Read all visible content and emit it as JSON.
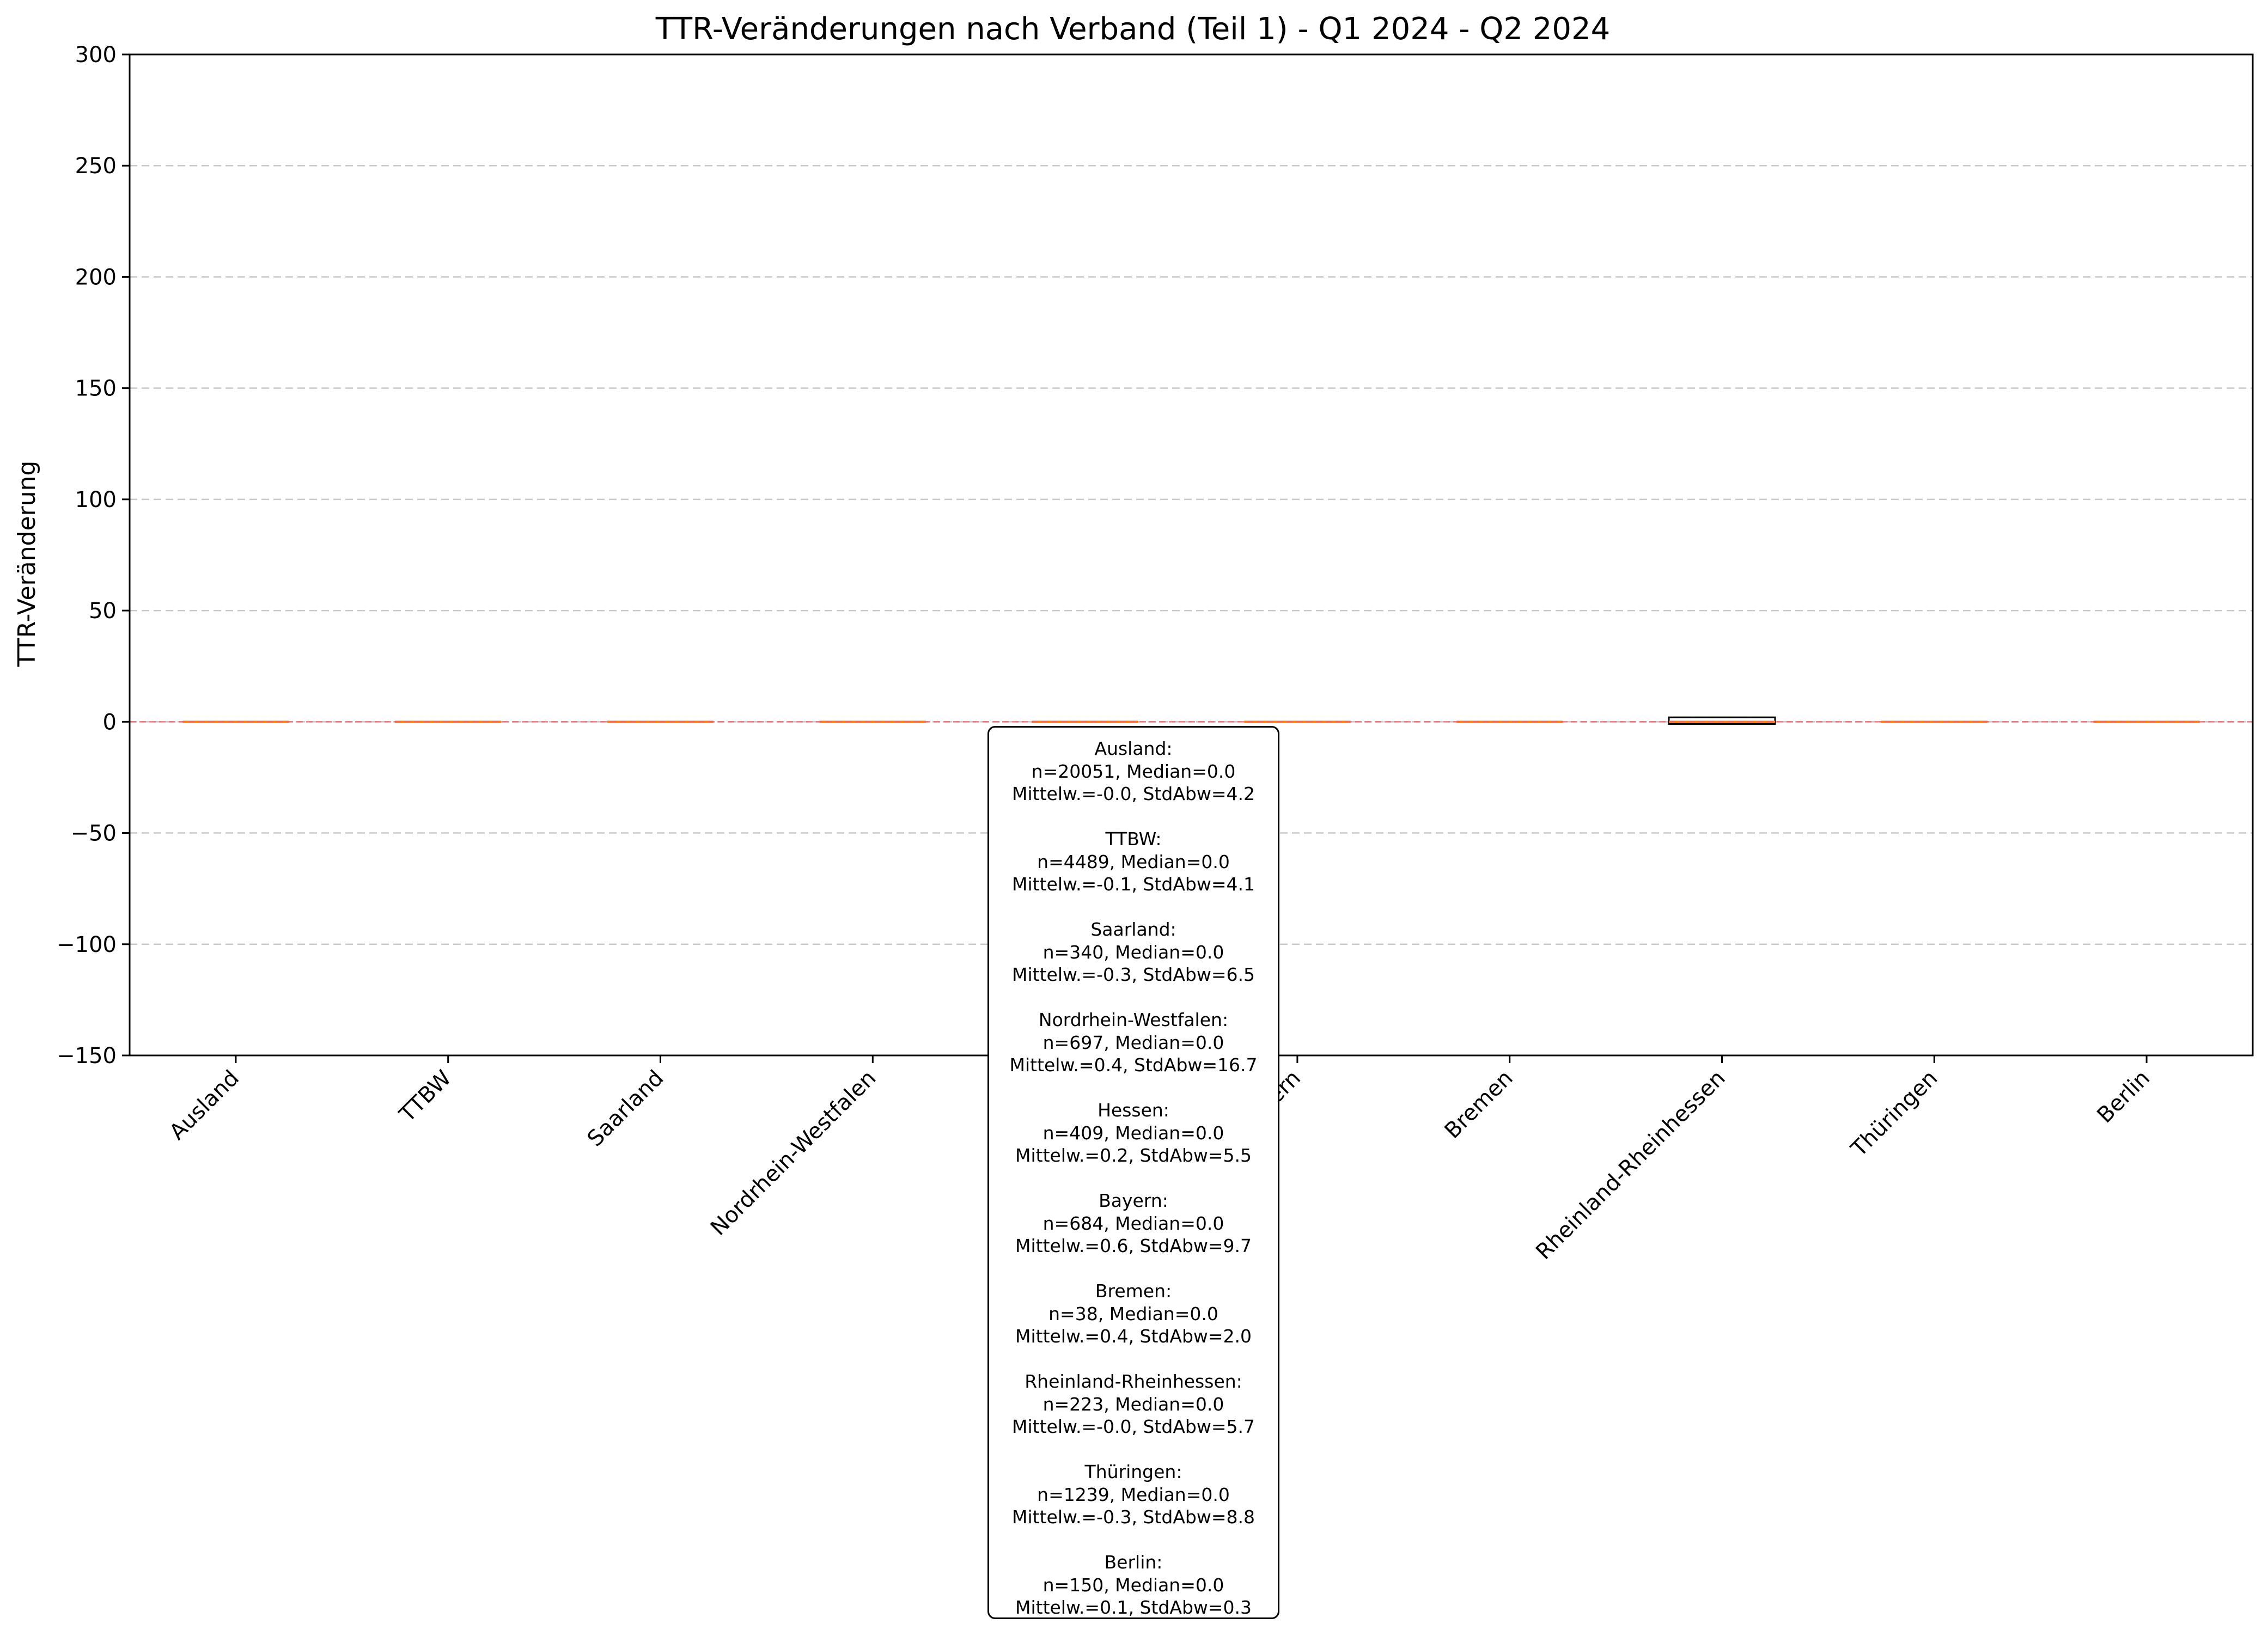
{
  "chart_data": {
    "type": "box",
    "title": "TTR-Veränderungen nach Verband (Teil 1) - Q1 2024 - Q2 2024",
    "xlabel": "",
    "ylabel": "TTR-Veränderung",
    "ylim": [
      -150,
      300
    ],
    "yticks": [
      -150,
      -100,
      -50,
      0,
      50,
      100,
      150,
      200,
      250,
      300
    ],
    "ytick_labels": [
      "−150",
      "−100",
      "−50",
      "0",
      "50",
      "100",
      "150",
      "200",
      "250",
      "300"
    ],
    "grid": "horizontal dashed",
    "reference_line": {
      "y": 0,
      "color": "#e8666b",
      "style": "dashed"
    },
    "categories": [
      "Ausland",
      "TTBW",
      "Saarland",
      "Nordrhein-Westfalen",
      "Hessen",
      "Bayern",
      "Bremen",
      "Rheinland-Rheinhessen",
      "Thüringen",
      "Berlin"
    ],
    "boxes": [
      {
        "label": "Ausland",
        "q1": 0,
        "median": 0,
        "q3": 0
      },
      {
        "label": "TTBW",
        "q1": 0,
        "median": 0,
        "q3": 0
      },
      {
        "label": "Saarland",
        "q1": 0,
        "median": 0,
        "q3": 0
      },
      {
        "label": "Nordrhein-Westfalen",
        "q1": 0,
        "median": 0,
        "q3": 0
      },
      {
        "label": "Hessen",
        "q1": 0,
        "median": 0,
        "q3": 0
      },
      {
        "label": "Bayern",
        "q1": 0,
        "median": 0,
        "q3": 0
      },
      {
        "label": "Bremen",
        "q1": 0,
        "median": 0,
        "q3": 0
      },
      {
        "label": "Rheinland-Rheinhessen",
        "q1": -1,
        "median": 0,
        "q3": 2
      },
      {
        "label": "Thüringen",
        "q1": 0,
        "median": 0,
        "q3": 0
      },
      {
        "label": "Berlin",
        "q1": 0,
        "median": 0,
        "q3": 0
      }
    ],
    "colors": {
      "median": "#ff7f0e",
      "box_edge": "#000000",
      "grid": "#c8c8c8",
      "zero_line": "#e8666b"
    },
    "stats_box": {
      "entries": [
        {
          "header": "Ausland:",
          "line1": "n=20051, Median=0.0",
          "line2": "Mittelw.=-0.0, StdAbw=4.2"
        },
        {
          "header": "TTBW:",
          "line1": "n=4489, Median=0.0",
          "line2": "Mittelw.=-0.1, StdAbw=4.1"
        },
        {
          "header": "Saarland:",
          "line1": "n=340, Median=0.0",
          "line2": "Mittelw.=-0.3, StdAbw=6.5"
        },
        {
          "header": "Nordrhein-Westfalen:",
          "line1": "n=697, Median=0.0",
          "line2": "Mittelw.=0.4, StdAbw=16.7"
        },
        {
          "header": "Hessen:",
          "line1": "n=409, Median=0.0",
          "line2": "Mittelw.=0.2, StdAbw=5.5"
        },
        {
          "header": "Bayern:",
          "line1": "n=684, Median=0.0",
          "line2": "Mittelw.=0.6, StdAbw=9.7"
        },
        {
          "header": "Bremen:",
          "line1": "n=38, Median=0.0",
          "line2": "Mittelw.=0.4, StdAbw=2.0"
        },
        {
          "header": "Rheinland-Rheinhessen:",
          "line1": "n=223, Median=0.0",
          "line2": "Mittelw.=-0.0, StdAbw=5.7"
        },
        {
          "header": "Thüringen:",
          "line1": "n=1239, Median=0.0",
          "line2": "Mittelw.=-0.3, StdAbw=8.8"
        },
        {
          "header": "Berlin:",
          "line1": "n=150, Median=0.0",
          "line2": "Mittelw.=0.1, StdAbw=0.3"
        }
      ]
    }
  }
}
